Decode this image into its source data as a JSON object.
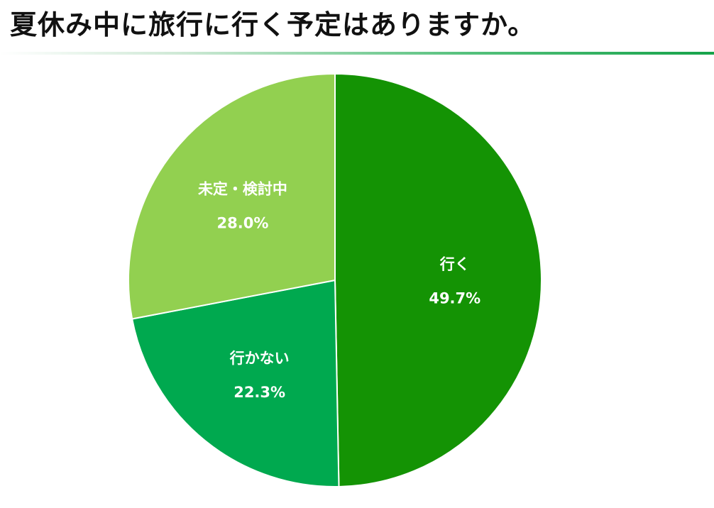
{
  "title": "夏休み中に旅行に行く予定はありますか。",
  "chart_data": {
    "type": "pie",
    "title": "夏休み中に旅行に行く予定はありますか。",
    "start": "12 o'clock",
    "direction": "clockwise",
    "slices": [
      {
        "label": "行く",
        "value": 49.7,
        "display": "49.7%",
        "color": "#149304"
      },
      {
        "label": "行かない",
        "value": 22.3,
        "display": "22.3%",
        "color": "#00a94f"
      },
      {
        "label": "未定・検討中",
        "value": 28.0,
        "display": "28.0%",
        "color": "#92d050"
      }
    ],
    "slice_border_color": "#ffffff",
    "legend": "none"
  }
}
